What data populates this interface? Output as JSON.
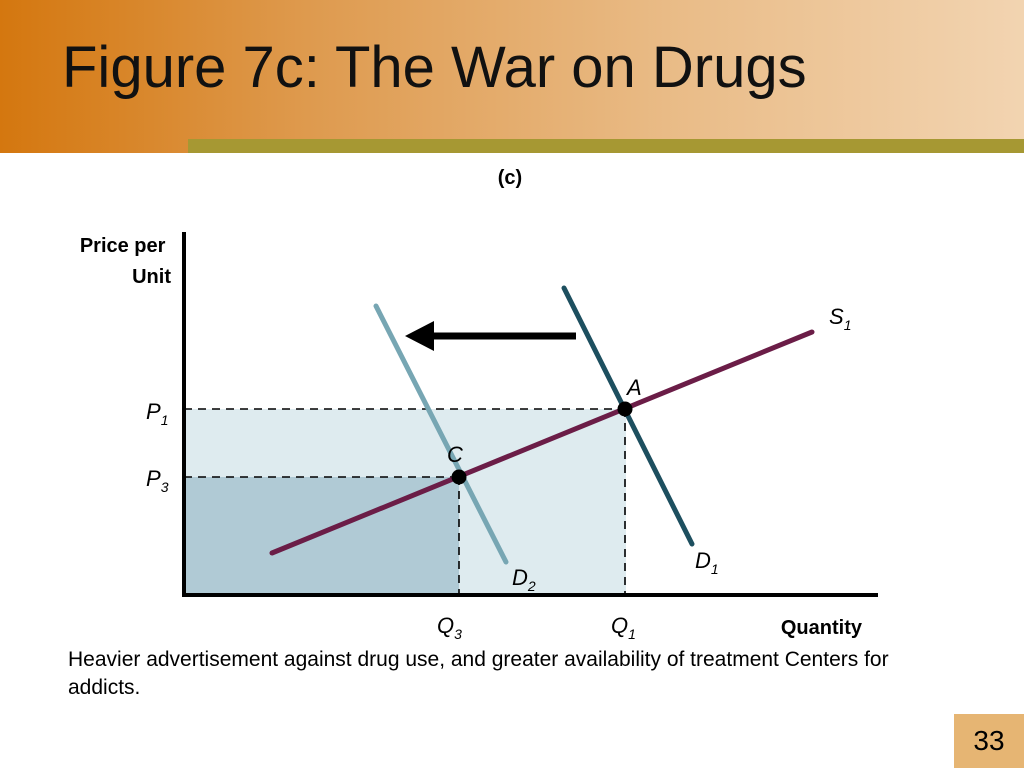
{
  "slide": {
    "title": "Figure 7c:  The War on Drugs",
    "page_number": "33",
    "caption": "Heavier advertisement against drug use, and greater availability of treatment Centers for addicts."
  },
  "diagram": {
    "panel_label": "(c)",
    "y_axis_label": [
      "Price per",
      "Unit"
    ],
    "x_axis_label": "Quantity",
    "price_labels": [
      {
        "base": "P",
        "sub": "1"
      },
      {
        "base": "P",
        "sub": "3"
      }
    ],
    "quantity_labels": [
      {
        "base": "Q",
        "sub": "3"
      },
      {
        "base": "Q",
        "sub": "1"
      }
    ],
    "curves": {
      "supply": {
        "base": "S",
        "sub": "1",
        "color": "#6b1d47"
      },
      "demand_original": {
        "base": "D",
        "sub": "1",
        "color": "#1d4f5f"
      },
      "demand_new": {
        "base": "D",
        "sub": "2",
        "color": "#77a6b3"
      }
    },
    "points": {
      "A": "A",
      "C": "C"
    },
    "colors": {
      "outer_region": "#deebef",
      "inner_region": "#b0cad5",
      "arrow": "#000000"
    }
  }
}
